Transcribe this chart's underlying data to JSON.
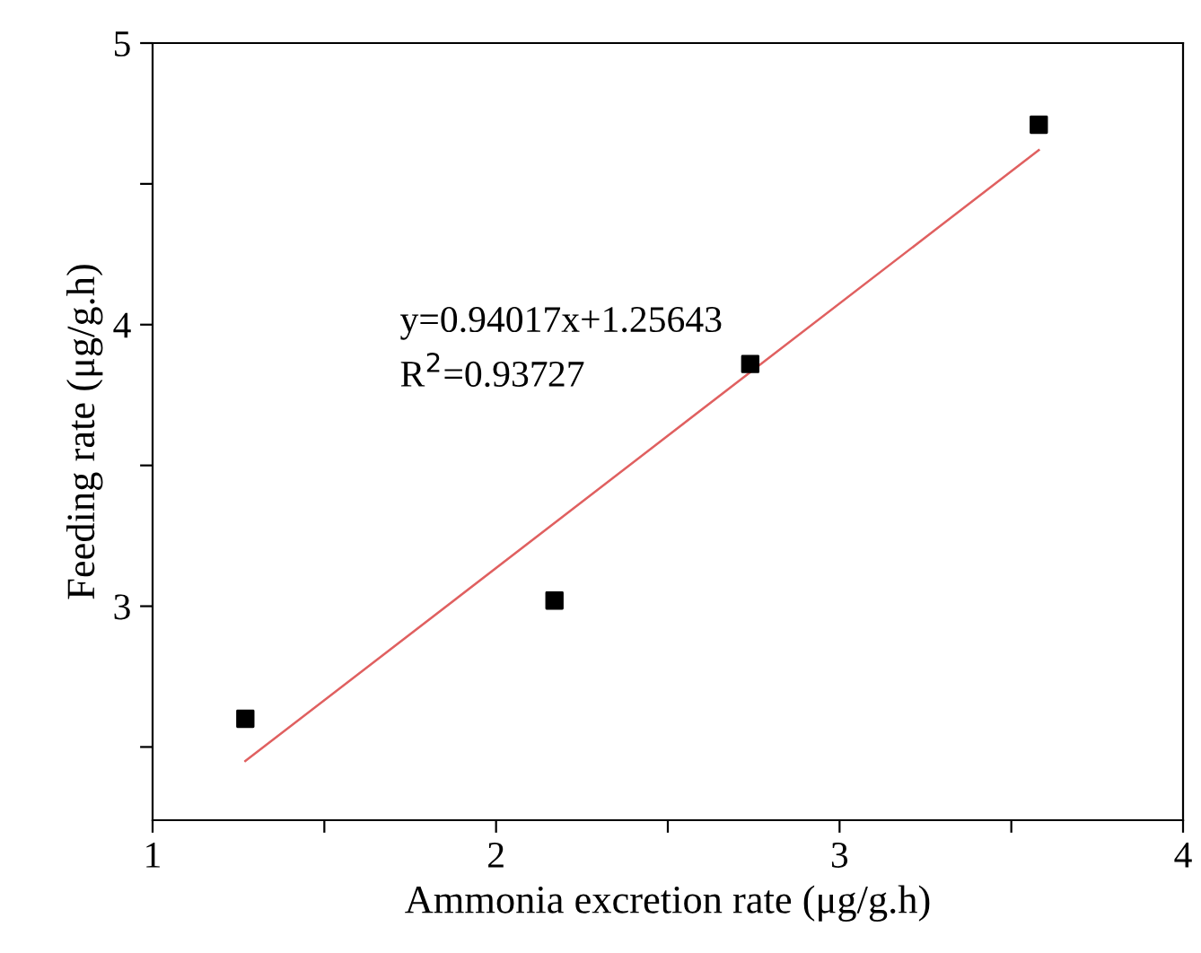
{
  "chart_data": {
    "type": "scatter",
    "xlabel": "Ammonia excretion rate (μg/g.h)",
    "ylabel": "Feeding rate (μg/g.h)",
    "series": [
      {
        "color": "#000000",
        "x": [
          1.27,
          2.17,
          2.74,
          3.58
        ],
        "values": [
          2.6,
          3.02,
          3.86,
          4.71
        ],
        "marker": "square"
      },
      {
        "type": "line",
        "color": "#e06060",
        "x": [
          1.27,
          3.58
        ],
        "values": [
          2.45,
          4.62
        ],
        "line_style": "solid"
      }
    ],
    "annotations": [
      "y=0.94017x+1.25643",
      "R$^{2}$=0.93727"
    ],
    "xlim": [
      1,
      4
    ],
    "ylim": [
      2.24,
      5
    ],
    "xticks": [
      1,
      {
        "value": 1.5,
        "label": null
      },
      2,
      {
        "value": 2.5,
        "label": null
      },
      3,
      {
        "value": 3.5,
        "label": null
      },
      4
    ],
    "yticks": [
      {
        "value": 2.5,
        "label": null
      },
      3,
      {
        "value": 3.5,
        "label": null
      },
      4,
      {
        "value": 4.5,
        "label": null
      },
      5
    ],
    "grid": false,
    "legend": false
  }
}
